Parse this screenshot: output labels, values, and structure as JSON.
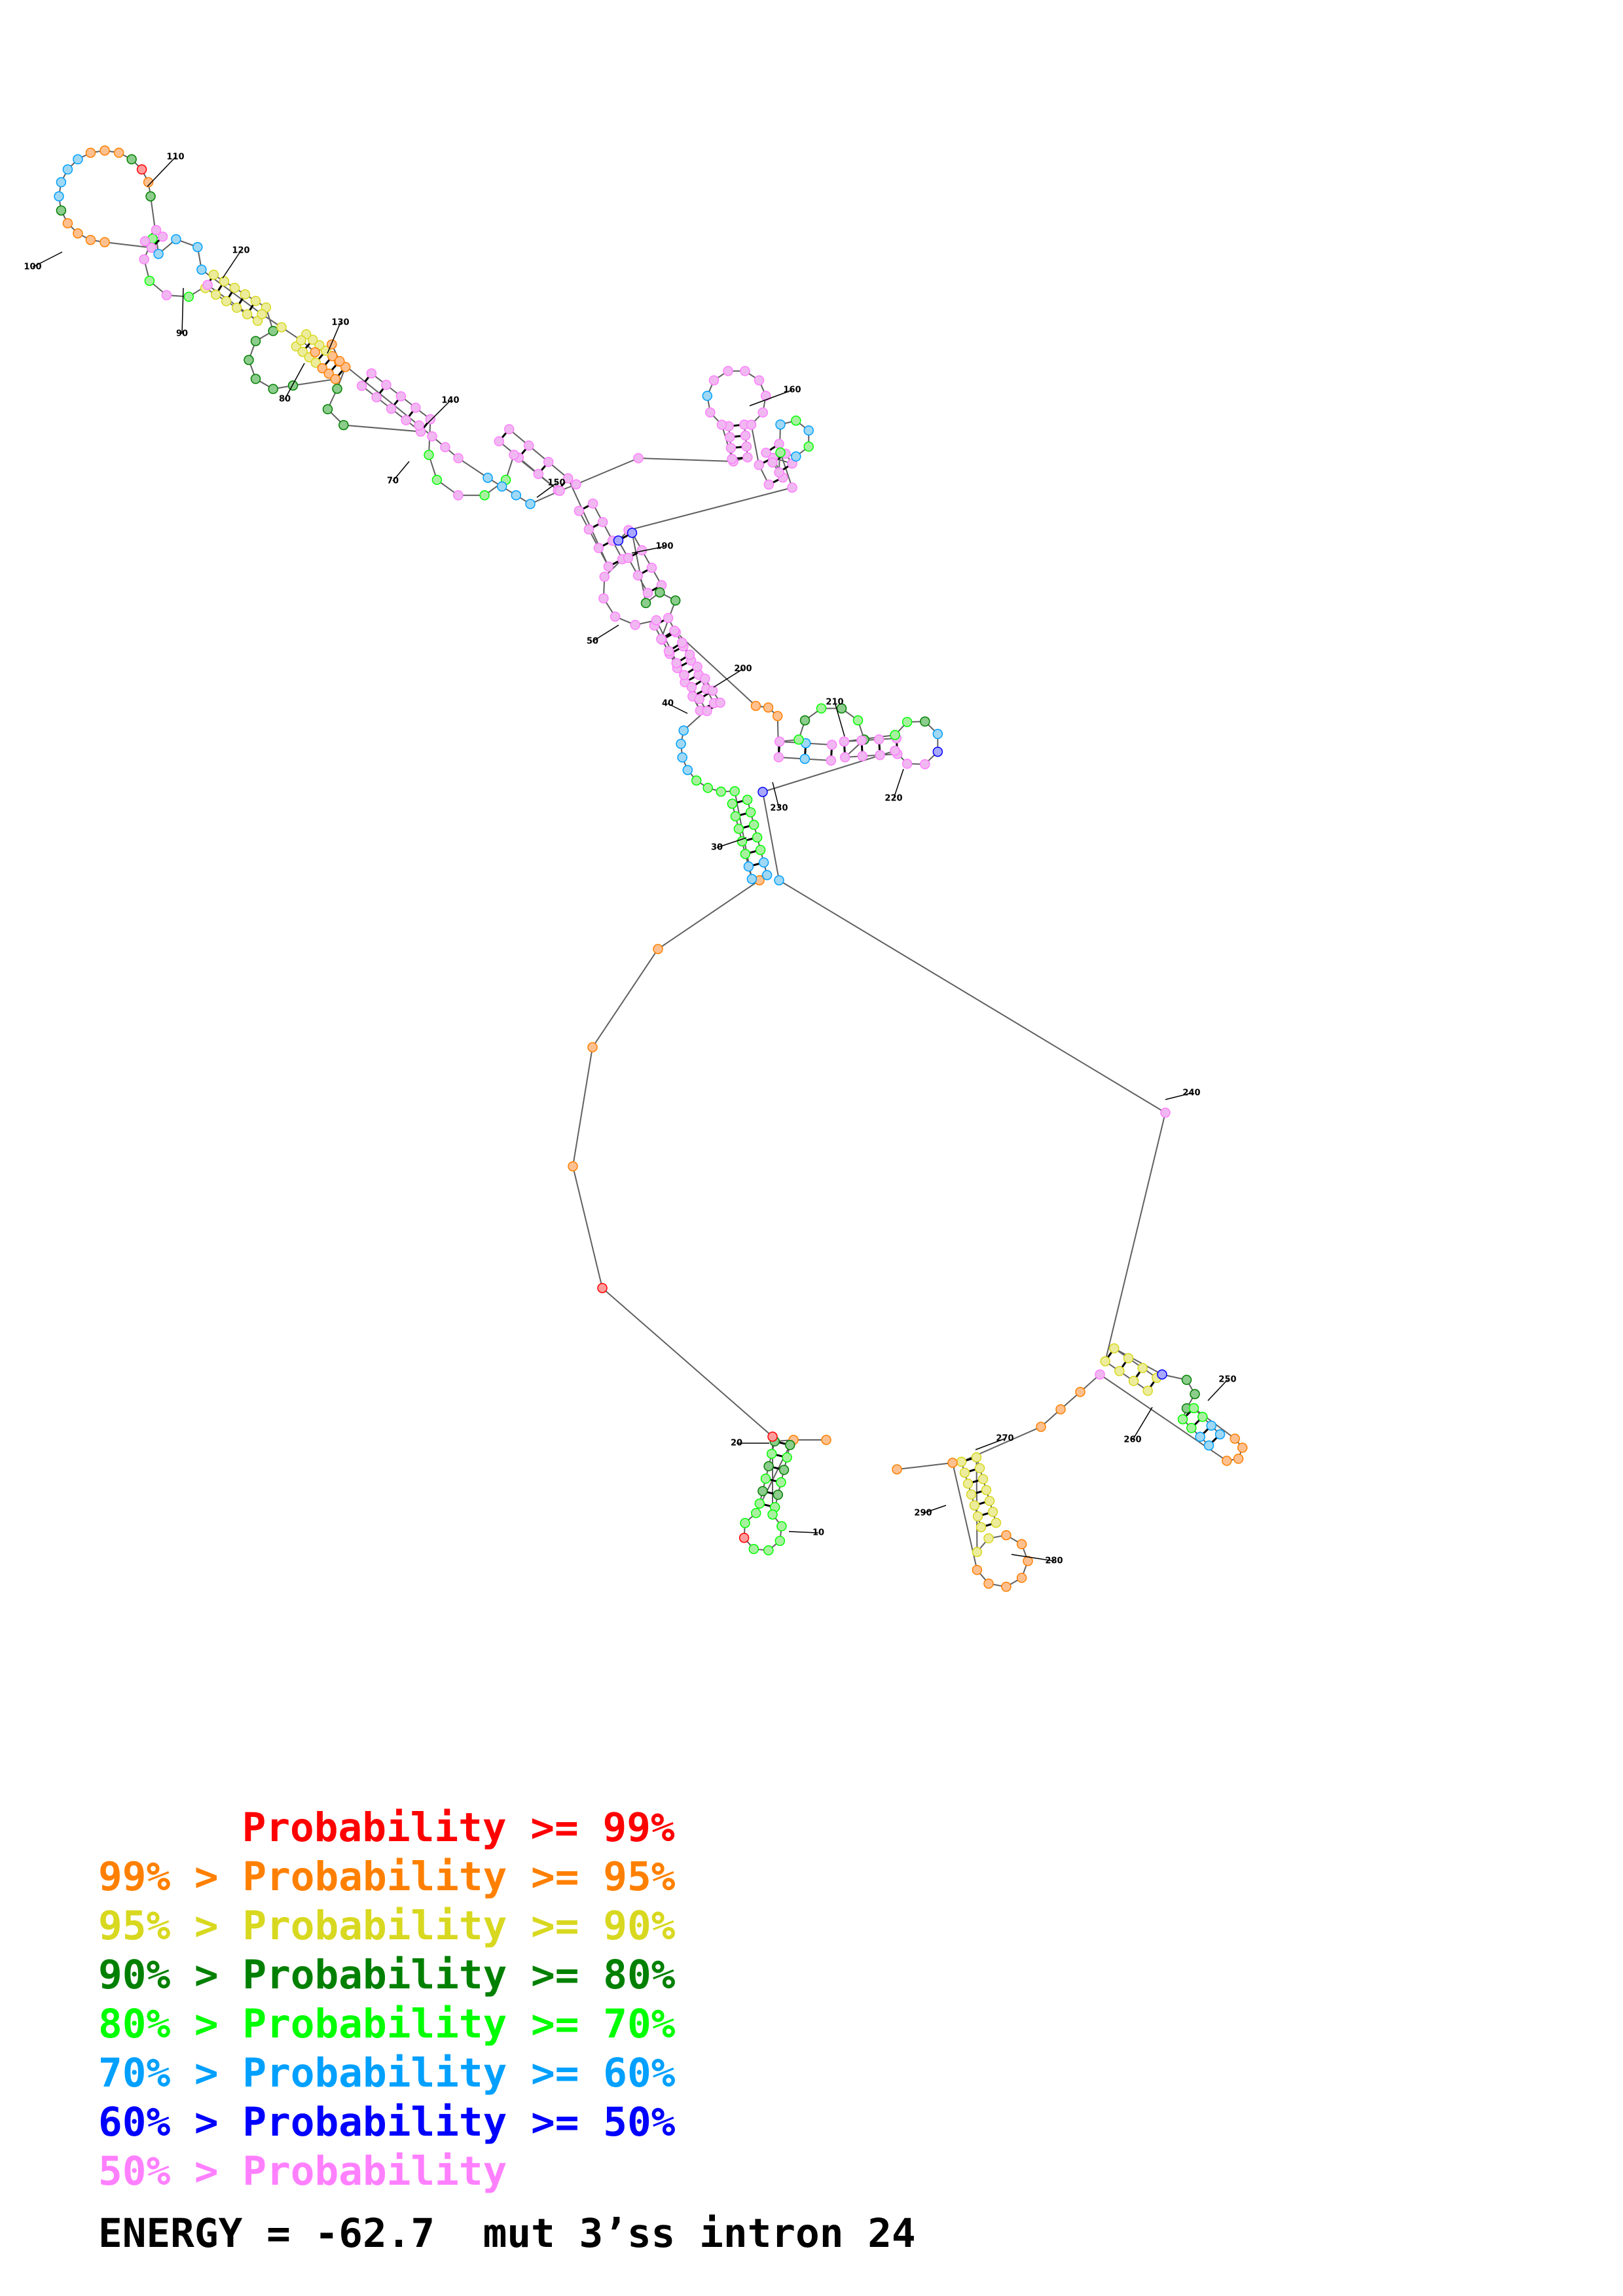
{
  "structure": {
    "position_labels": [
      "10",
      "20",
      "30",
      "40",
      "50",
      "70",
      "80",
      "90",
      "100",
      "110",
      "120",
      "130",
      "140",
      "150",
      "160",
      "190",
      "200",
      "210",
      "220",
      "230",
      "240",
      "250",
      "260",
      "270",
      "280",
      "290"
    ],
    "probability_classes": [
      {
        "id": "p99",
        "color": "#ff0000"
      },
      {
        "id": "p95",
        "color": "#ff8000"
      },
      {
        "id": "p90",
        "color": "#d8d820"
      },
      {
        "id": "p80",
        "color": "#008000"
      },
      {
        "id": "p70",
        "color": "#00ff00"
      },
      {
        "id": "p60",
        "color": "#00a0ff"
      },
      {
        "id": "p50",
        "color": "#0000ff"
      },
      {
        "id": "plow",
        "color": "#ff80ff"
      }
    ]
  },
  "legend": {
    "rows": [
      {
        "prefix": "",
        "text": "Probability >= 99%",
        "color": "#ff0000"
      },
      {
        "prefix": "99% > ",
        "text": "Probability >= 95%",
        "color": "#ff8000"
      },
      {
        "prefix": "95% > ",
        "text": "Probability >= 90%",
        "color": "#d8d820"
      },
      {
        "prefix": "90% > ",
        "text": "Probability >= 80%",
        "color": "#008000"
      },
      {
        "prefix": "80% > ",
        "text": "Probability >= 70%",
        "color": "#00ff00"
      },
      {
        "prefix": "70% > ",
        "text": "Probability >= 60%",
        "color": "#00a0ff"
      },
      {
        "prefix": "60% > ",
        "text": "Probability >= 50%",
        "color": "#0000ff"
      },
      {
        "prefix": "50% > ",
        "text": "Probability",
        "color": "#ff80ff"
      }
    ],
    "energy": "ENERGY = -62.7  mut 3’ss intron 24"
  }
}
